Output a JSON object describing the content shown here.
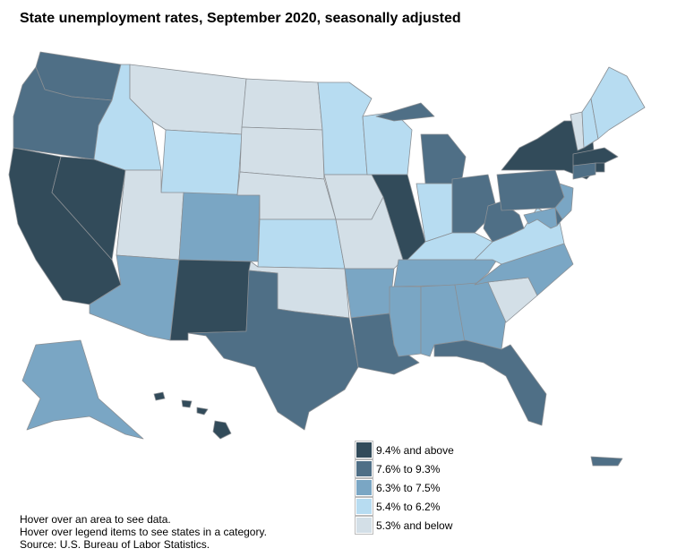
{
  "title": "State unemployment rates, September 2020, seasonally adjusted",
  "legend": {
    "items": [
      {
        "label": "9.4% and above",
        "color": "#324b5a"
      },
      {
        "label": "7.6% to 9.3%",
        "color": "#4f6f86"
      },
      {
        "label": "6.3% to 7.5%",
        "color": "#7aa6c4"
      },
      {
        "label": "5.4% to 6.2%",
        "color": "#b7dcf1"
      },
      {
        "label": "5.3% and below",
        "color": "#d3dfe7"
      }
    ]
  },
  "notes": [
    "Hover over an area to see data.",
    "Hover over legend items to see states in a category.",
    "Source: U.S. Bureau of Labor Statistics."
  ]
}
